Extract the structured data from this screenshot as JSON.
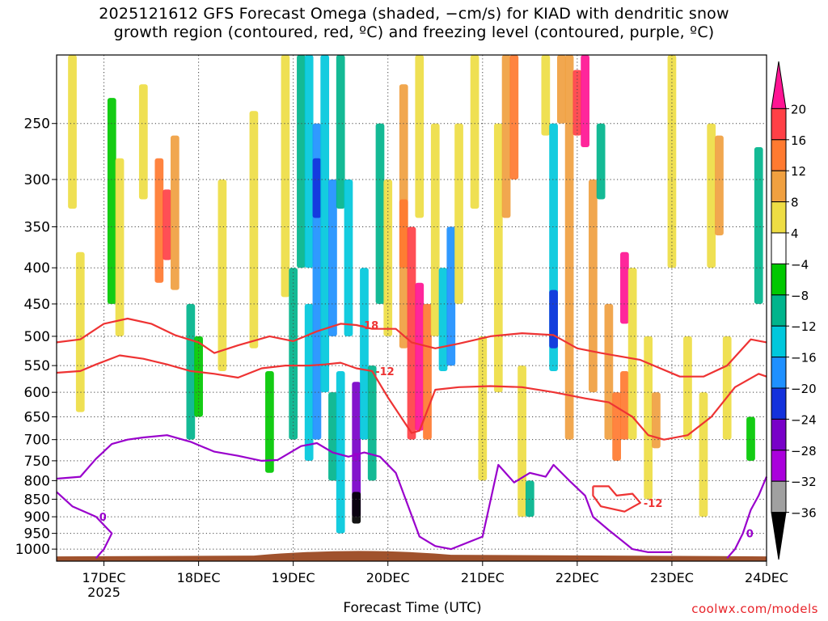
{
  "title_line1": "2025121612 GFS Forecast Omega (shaded, −cm/s) for KIAD with dendritic snow",
  "title_line2": "growth region (contoured, red, ºC) and freezing level (contoured, purple, ºC)",
  "xlabel": "Forecast Time (UTC)",
  "credit": "coolwx.com/models",
  "chart_data": {
    "type": "heatmap",
    "title": "2025121612 GFS Forecast Omega (shaded, −cm/s) for KIAD with dendritic snow growth region (contoured, red, ºC) and freezing level (contoured, purple, ºC)",
    "xlabel": "Forecast Time (UTC)",
    "ylabel": "",
    "x_ticks": [
      "17DEC",
      "18DEC",
      "19DEC",
      "20DEC",
      "21DEC",
      "22DEC",
      "23DEC",
      "24DEC"
    ],
    "x_year_label": "2025",
    "y_ticks": [
      250,
      300,
      350,
      400,
      450,
      500,
      550,
      600,
      650,
      700,
      750,
      800,
      850,
      900,
      950,
      1000
    ],
    "y_scale": "log-pressure (inverted)",
    "x_range_hours": [
      0,
      180
    ],
    "y_range_hPa": [
      200,
      1040
    ],
    "grid": true,
    "colorbar": {
      "labels": [
        "20",
        "16",
        "12",
        "8",
        "4",
        "−4",
        "−8",
        "−12",
        "−16",
        "−20",
        "−24",
        "−28",
        "−32",
        "−36"
      ],
      "colors": [
        "#ff1493",
        "#ff4046",
        "#ff7a30",
        "#f0a040",
        "#eedd44",
        "#ffffff",
        "#00c800",
        "#00b48c",
        "#00c8dc",
        "#1e90ff",
        "#1432dc",
        "#7800c8",
        "#aa00dc",
        "#a0a0a0",
        "#000000"
      ]
    },
    "omega_cells": [
      {
        "t": 4,
        "p0": 200,
        "p1": 330,
        "v": 6
      },
      {
        "t": 6,
        "p0": 380,
        "p1": 640,
        "v": 5
      },
      {
        "t": 14,
        "p0": 230,
        "p1": 450,
        "v": -7
      },
      {
        "t": 16,
        "p0": 280,
        "p1": 500,
        "v": 6
      },
      {
        "t": 22,
        "p0": 220,
        "p1": 320,
        "v": 5
      },
      {
        "t": 26,
        "p0": 280,
        "p1": 420,
        "v": 14
      },
      {
        "t": 28,
        "p0": 310,
        "p1": 390,
        "v": 18
      },
      {
        "t": 30,
        "p0": 260,
        "p1": 430,
        "v": 9
      },
      {
        "t": 34,
        "p0": 450,
        "p1": 700,
        "v": -9
      },
      {
        "t": 36,
        "p0": 500,
        "p1": 650,
        "v": -7
      },
      {
        "t": 42,
        "p0": 300,
        "p1": 560,
        "v": 5
      },
      {
        "t": 50,
        "p0": 240,
        "p1": 520,
        "v": 6
      },
      {
        "t": 54,
        "p0": 560,
        "p1": 780,
        "v": -7
      },
      {
        "t": 58,
        "p0": 200,
        "p1": 440,
        "v": 5
      },
      {
        "t": 60,
        "p0": 400,
        "p1": 700,
        "v": -9
      },
      {
        "t": 62,
        "p0": 200,
        "p1": 400,
        "v": -10
      },
      {
        "t": 64,
        "p0": 200,
        "p1": 400,
        "v": -12
      },
      {
        "t": 64,
        "p0": 450,
        "p1": 750,
        "v": -15
      },
      {
        "t": 66,
        "p0": 250,
        "p1": 700,
        "v": -16
      },
      {
        "t": 66,
        "p0": 280,
        "p1": 340,
        "v": -22
      },
      {
        "t": 68,
        "p0": 200,
        "p1": 600,
        "v": -12
      },
      {
        "t": 70,
        "p0": 300,
        "p1": 500,
        "v": -19
      },
      {
        "t": 70,
        "p0": 600,
        "p1": 800,
        "v": -10
      },
      {
        "t": 72,
        "p0": 560,
        "p1": 950,
        "v": -13
      },
      {
        "t": 72,
        "p0": 200,
        "p1": 330,
        "v": -9
      },
      {
        "t": 74,
        "p0": 300,
        "p1": 500,
        "v": -13
      },
      {
        "t": 76,
        "p0": 580,
        "p1": 900,
        "v": -26
      },
      {
        "t": 76,
        "p0": 830,
        "p1": 920,
        "v": -37
      },
      {
        "t": 78,
        "p0": 400,
        "p1": 700,
        "v": -15
      },
      {
        "t": 80,
        "p0": 550,
        "p1": 800,
        "v": -9
      },
      {
        "t": 82,
        "p0": 250,
        "p1": 450,
        "v": -8
      },
      {
        "t": 84,
        "p0": 300,
        "p1": 500,
        "v": 6
      },
      {
        "t": 88,
        "p0": 220,
        "p1": 520,
        "v": 9
      },
      {
        "t": 88,
        "p0": 320,
        "p1": 400,
        "v": 13
      },
      {
        "t": 90,
        "p0": 350,
        "p1": 700,
        "v": 17
      },
      {
        "t": 92,
        "p0": 420,
        "p1": 680,
        "v": 21
      },
      {
        "t": 92,
        "p0": 200,
        "p1": 340,
        "v": 5
      },
      {
        "t": 94,
        "p0": 450,
        "p1": 700,
        "v": 12
      },
      {
        "t": 96,
        "p0": 250,
        "p1": 500,
        "v": 5
      },
      {
        "t": 98,
        "p0": 400,
        "p1": 560,
        "v": -12
      },
      {
        "t": 100,
        "p0": 350,
        "p1": 550,
        "v": -17
      },
      {
        "t": 102,
        "p0": 250,
        "p1": 450,
        "v": 6
      },
      {
        "t": 106,
        "p0": 200,
        "p1": 330,
        "v": 5
      },
      {
        "t": 108,
        "p0": 500,
        "p1": 800,
        "v": 5
      },
      {
        "t": 112,
        "p0": 250,
        "p1": 600,
        "v": 7
      },
      {
        "t": 114,
        "p0": 200,
        "p1": 340,
        "v": 10
      },
      {
        "t": 116,
        "p0": 200,
        "p1": 300,
        "v": 12
      },
      {
        "t": 118,
        "p0": 550,
        "p1": 900,
        "v": 5
      },
      {
        "t": 120,
        "p0": 800,
        "p1": 900,
        "v": -8
      },
      {
        "t": 124,
        "p0": 200,
        "p1": 260,
        "v": 5
      },
      {
        "t": 126,
        "p0": 250,
        "p1": 560,
        "v": -14
      },
      {
        "t": 126,
        "p0": 430,
        "p1": 520,
        "v": -21
      },
      {
        "t": 128,
        "p0": 200,
        "p1": 250,
        "v": 10
      },
      {
        "t": 130,
        "p0": 200,
        "p1": 700,
        "v": 10
      },
      {
        "t": 132,
        "p0": 210,
        "p1": 260,
        "v": 18
      },
      {
        "t": 134,
        "p0": 200,
        "p1": 270,
        "v": 21
      },
      {
        "t": 136,
        "p0": 300,
        "p1": 600,
        "v": 8
      },
      {
        "t": 138,
        "p0": 250,
        "p1": 320,
        "v": -8
      },
      {
        "t": 140,
        "p0": 450,
        "p1": 700,
        "v": 10
      },
      {
        "t": 142,
        "p0": 600,
        "p1": 750,
        "v": 14
      },
      {
        "t": 144,
        "p0": 380,
        "p1": 480,
        "v": 21
      },
      {
        "t": 144,
        "p0": 560,
        "p1": 700,
        "v": 13
      },
      {
        "t": 146,
        "p0": 400,
        "p1": 700,
        "v": 6
      },
      {
        "t": 150,
        "p0": 500,
        "p1": 850,
        "v": 6
      },
      {
        "t": 152,
        "p0": 600,
        "p1": 720,
        "v": 10
      },
      {
        "t": 156,
        "p0": 200,
        "p1": 400,
        "v": 5
      },
      {
        "t": 160,
        "p0": 500,
        "p1": 700,
        "v": 5
      },
      {
        "t": 164,
        "p0": 600,
        "p1": 900,
        "v": 5
      },
      {
        "t": 166,
        "p0": 250,
        "p1": 400,
        "v": 5
      },
      {
        "t": 168,
        "p0": 260,
        "p1": 360,
        "v": 9
      },
      {
        "t": 170,
        "p0": 500,
        "p1": 700,
        "v": 5
      },
      {
        "t": 178,
        "p0": 270,
        "p1": 450,
        "v": -8
      },
      {
        "t": 176,
        "p0": 650,
        "p1": 750,
        "v": -7
      }
    ],
    "contours": [
      {
        "name": "",
        "color": "#ee3333",
        "label": "-18",
        "points": [
          [
            0,
            510
          ],
          [
            6,
            505
          ],
          [
            12,
            480
          ],
          [
            18,
            472
          ],
          [
            24,
            480
          ],
          [
            30,
            498
          ],
          [
            36,
            510
          ],
          [
            40,
            528
          ],
          [
            46,
            515
          ],
          [
            54,
            500
          ],
          [
            60,
            508
          ],
          [
            66,
            492
          ],
          [
            72,
            480
          ],
          [
            76,
            482
          ],
          [
            80,
            488
          ],
          [
            86,
            488
          ],
          [
            90,
            510
          ],
          [
            96,
            520
          ],
          [
            102,
            512
          ],
          [
            110,
            500
          ],
          [
            118,
            495
          ],
          [
            126,
            498
          ],
          [
            132,
            520
          ],
          [
            138,
            528
          ],
          [
            148,
            540
          ],
          [
            158,
            570
          ],
          [
            164,
            570
          ],
          [
            170,
            550
          ],
          [
            176,
            505
          ],
          [
            180,
            510
          ]
        ]
      },
      {
        "name": "",
        "color": "#ee3333",
        "label": "-12",
        "points": [
          [
            0,
            563
          ],
          [
            6,
            560
          ],
          [
            10,
            548
          ],
          [
            16,
            532
          ],
          [
            22,
            538
          ],
          [
            28,
            548
          ],
          [
            34,
            560
          ],
          [
            40,
            565
          ],
          [
            46,
            572
          ],
          [
            52,
            555
          ],
          [
            58,
            550
          ],
          [
            64,
            550
          ],
          [
            68,
            548
          ],
          [
            72,
            545
          ],
          [
            76,
            555
          ],
          [
            80,
            560
          ],
          [
            84,
            610
          ],
          [
            90,
            685
          ],
          [
            92,
            680
          ],
          [
            96,
            595
          ],
          [
            102,
            590
          ],
          [
            110,
            588
          ],
          [
            118,
            590
          ],
          [
            126,
            600
          ],
          [
            134,
            612
          ],
          [
            140,
            620
          ],
          [
            146,
            650
          ],
          [
            150,
            690
          ],
          [
            154,
            700
          ],
          [
            160,
            690
          ],
          [
            166,
            650
          ],
          [
            172,
            590
          ],
          [
            178,
            565
          ],
          [
            180,
            570
          ]
        ]
      },
      {
        "name": "",
        "color": "#ee3333",
        "label": "-12",
        "points": [
          [
            136,
            815
          ],
          [
            140,
            815
          ],
          [
            142,
            840
          ],
          [
            146,
            835
          ],
          [
            148,
            860
          ],
          [
            144,
            885
          ],
          [
            138,
            870
          ],
          [
            136,
            840
          ],
          [
            136,
            815
          ]
        ]
      },
      {
        "name": "",
        "color": "#9900cc",
        "label": "0",
        "points": [
          [
            0,
            795
          ],
          [
            6,
            790
          ],
          [
            10,
            745
          ],
          [
            14,
            710
          ],
          [
            18,
            700
          ],
          [
            22,
            695
          ],
          [
            28,
            690
          ],
          [
            34,
            705
          ],
          [
            40,
            728
          ],
          [
            46,
            738
          ],
          [
            52,
            750
          ],
          [
            56,
            748
          ],
          [
            62,
            715
          ],
          [
            66,
            708
          ],
          [
            70,
            730
          ],
          [
            74,
            740
          ],
          [
            78,
            730
          ],
          [
            82,
            740
          ],
          [
            86,
            780
          ],
          [
            92,
            960
          ],
          [
            96,
            990
          ],
          [
            100,
            1000
          ],
          [
            108,
            960
          ],
          [
            112,
            760
          ],
          [
            116,
            805
          ],
          [
            120,
            780
          ],
          [
            124,
            790
          ],
          [
            126,
            760
          ],
          [
            130,
            800
          ],
          [
            134,
            840
          ],
          [
            136,
            900
          ],
          [
            140,
            940
          ],
          [
            146,
            1000
          ],
          [
            150,
            1010
          ],
          [
            156,
            1010
          ]
        ]
      },
      {
        "name": "",
        "color": "#9900cc",
        "label": "0",
        "points": [
          [
            0,
            830
          ],
          [
            4,
            870
          ],
          [
            10,
            900
          ],
          [
            14,
            950
          ],
          [
            12,
            1000
          ],
          [
            10,
            1030
          ]
        ]
      },
      {
        "name": "",
        "color": "#9900cc",
        "label": "0",
        "points": [
          [
            170,
            1030
          ],
          [
            172,
            1000
          ],
          [
            174,
            950
          ],
          [
            176,
            880
          ],
          [
            178,
            840
          ],
          [
            180,
            790
          ]
        ]
      }
    ]
  }
}
